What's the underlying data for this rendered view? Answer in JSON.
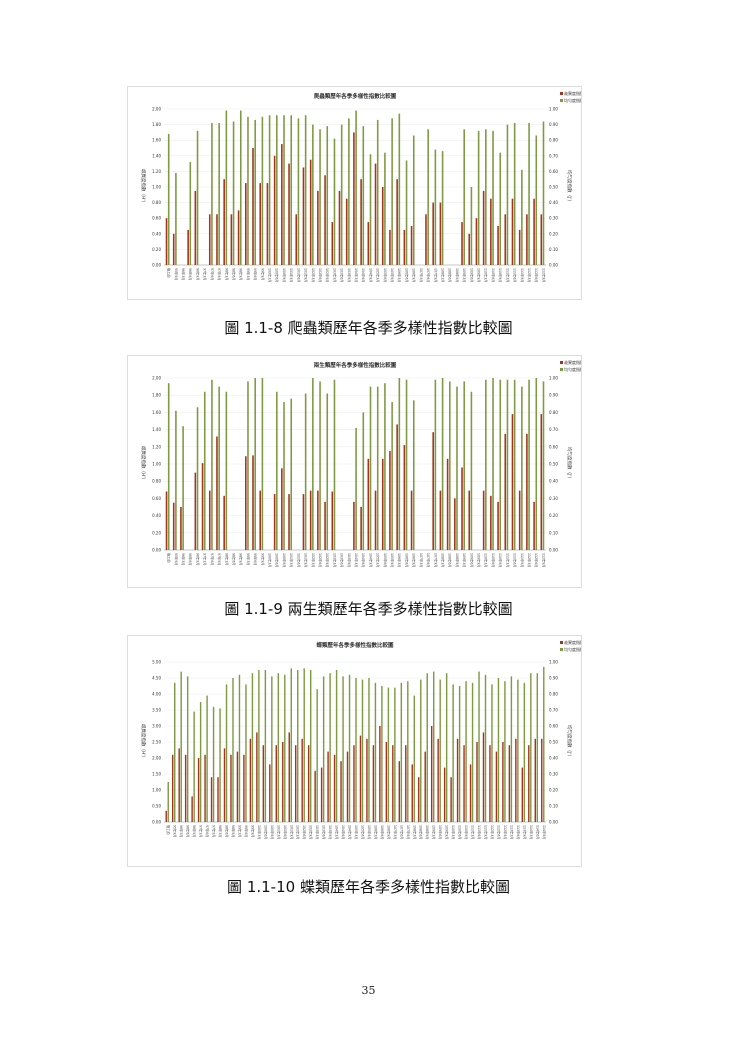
{
  "colors": {
    "richness": "#a4351f",
    "evenness": "#7e9a42",
    "grid": "#e9e9e9",
    "axis": "#999999"
  },
  "page_number": "35",
  "figures": [
    {
      "caption": "圖 1.1-8 爬蟲類歷年各季多樣性指數比較圖",
      "chart_data": {
        "type": "bar",
        "title": "爬蟲類歷年各季多樣性指數比較圖",
        "legend": [
          "歧異度指數",
          "均勻度指數"
        ],
        "legend_position": "top-right",
        "ylabel_left": "歧異度指數（H'）",
        "ylabel_right": "均勻度指數（J'）",
        "ylim_left": [
          0,
          2
        ],
        "ylim_right": [
          0,
          1
        ],
        "yticks_left": [
          "0.00",
          "0.20",
          "0.40",
          "0.60",
          "0.80",
          "1.00",
          "1.20",
          "1.40",
          "1.60",
          "1.80",
          "2.00"
        ],
        "yticks_right": [
          "0.00",
          "0.10",
          "0.20",
          "0.30",
          "0.40",
          "0.50",
          "0.60",
          "0.70",
          "0.80",
          "0.90",
          "1.00"
        ],
        "xticks": [
          "施工前",
          "95年9月",
          "96年3月",
          "96年6月",
          "96年9月",
          "97年3月",
          "97年6月",
          "97年9月",
          "98年3月",
          "98年6月",
          "98年9月",
          "99年3月",
          "99年6月",
          "99年9月",
          "100年3月",
          "100年6月",
          "100年9月",
          "101年3月",
          "101年6月",
          "101年9月",
          "102年3月",
          "102年6月",
          "102年9月",
          "103年3月",
          "103年6月",
          "103年9月",
          "104年3月",
          "104年6月",
          "104年9月",
          "105年3月",
          "105年6月",
          "105年9月",
          "106年3月",
          "106年6月",
          "106年9月",
          "107年3月",
          "107年6月",
          "107年9月",
          "108年3月",
          "108年6月",
          "108年9月",
          "109年3月",
          "109年6月",
          "109年9月",
          "110年3月",
          "110年6月",
          "110年9月",
          "111年3月",
          "111年6月",
          "111年9月",
          "112年3月",
          "112年6月",
          "112年9月"
        ],
        "series": [
          {
            "name": "歧異度指數",
            "values": [
              0.6,
              0.4,
              0,
              0.45,
              0.95,
              0,
              0.65,
              0.65,
              1.1,
              0.65,
              0.7,
              1.05,
              1.5,
              1.05,
              1.05,
              1.4,
              1.55,
              1.3,
              0.65,
              1.25,
              1.35,
              0.95,
              1.15,
              0.55,
              0.95,
              0.85,
              1.7,
              1.1,
              0.55,
              1.3,
              1.0,
              0.45,
              1.1,
              0.45,
              0.5,
              0,
              0.65,
              0.8,
              0.8,
              0,
              0,
              0.55,
              0.4,
              0.6,
              0.95,
              0.85,
              0.5,
              0.65,
              0.85,
              0.45,
              0.65,
              0.85,
              0.65
            ]
          },
          {
            "name": "均勻度指數",
            "values": [
              0.84,
              0.59,
              0,
              0.66,
              0.86,
              0,
              0.91,
              0.91,
              0.99,
              0.92,
              0.99,
              0.95,
              0.93,
              0.95,
              0.96,
              0.96,
              0.96,
              0.96,
              0.94,
              0.96,
              0.9,
              0.87,
              0.89,
              0.81,
              0.9,
              0.94,
              0.99,
              0.89,
              0.71,
              0.93,
              0.72,
              0.94,
              0.97,
              0.67,
              0.83,
              0,
              0.87,
              0.74,
              0.73,
              0,
              0,
              0.87,
              0.5,
              0.86,
              0.87,
              0.86,
              0.72,
              0.9,
              0.91,
              0.61,
              0.91,
              0.83,
              0.92
            ]
          }
        ]
      }
    },
    {
      "caption": "圖 1.1-9 兩生類歷年各季多樣性指數比較圖",
      "chart_data": {
        "type": "bar",
        "title": "兩生類歷年各季多樣性指數比較圖",
        "legend": [
          "歧異度指數",
          "均勻度指數"
        ],
        "legend_position": "top-right",
        "ylabel_left": "歧異度指數（H'）",
        "ylabel_right": "均勻度指數（J'）",
        "ylim_left": [
          0,
          2
        ],
        "ylim_right": [
          0,
          1
        ],
        "yticks_left": [
          "0.00",
          "0.20",
          "0.40",
          "0.60",
          "0.80",
          "1.00",
          "1.20",
          "1.40",
          "1.60",
          "1.80",
          "2.00"
        ],
        "yticks_right": [
          "0.00",
          "0.10",
          "0.20",
          "0.30",
          "0.40",
          "0.50",
          "0.60",
          "0.70",
          "0.80",
          "0.90",
          "1.00"
        ],
        "xticks": [
          "施工前",
          "95年9月",
          "96年3月",
          "96年6月",
          "96年9月",
          "97年3月",
          "97年6月",
          "97年9月",
          "98年3月",
          "98年6月",
          "98年9月",
          "99年3月",
          "99年6月",
          "99年9月",
          "100年3月",
          "100年6月",
          "100年9月",
          "101年3月",
          "101年6月",
          "101年9月",
          "102年3月",
          "102年6月",
          "102年9月",
          "103年3月",
          "103年6月",
          "103年9月",
          "104年3月",
          "104年6月",
          "104年9月",
          "105年3月",
          "105年6月",
          "105年9月",
          "106年3月",
          "106年6月",
          "106年9月",
          "107年3月",
          "107年6月",
          "107年9月",
          "108年3月",
          "108年6月",
          "108年9月",
          "109年3月",
          "109年6月",
          "109年9月",
          "110年3月",
          "110年6月",
          "110年9月",
          "111年3月",
          "111年6月",
          "111年9月",
          "112年3月",
          "112年6月",
          "112年9月"
        ],
        "series": [
          {
            "name": "歧異度指數",
            "values": [
              0.68,
              0.55,
              0.5,
              0,
              0.9,
              1.01,
              0.69,
              1.32,
              0.63,
              0,
              0,
              1.09,
              1.1,
              0.69,
              0,
              0.65,
              0.95,
              0.65,
              0,
              0.65,
              0.69,
              0.69,
              0.56,
              0.68,
              0,
              0,
              0.56,
              0.5,
              1.06,
              0.69,
              1.06,
              1.15,
              1.46,
              1.22,
              0.69,
              0,
              0,
              1.37,
              0.69,
              1.06,
              0.6,
              0.96,
              0.69,
              0,
              0.69,
              0.63,
              0.56,
              1.35,
              1.58,
              0.69,
              1.35,
              0.56,
              1.58
            ]
          },
          {
            "name": "均勻度指數",
            "values": [
              0.97,
              0.81,
              0.72,
              0,
              0.83,
              0.92,
              0.99,
              0.95,
              0.92,
              0,
              0,
              0.98,
              1.0,
              1.0,
              0,
              0.92,
              0.86,
              0.88,
              0,
              0.91,
              1.0,
              0.98,
              0.91,
              0.99,
              0,
              0,
              0.71,
              0.8,
              0.95,
              0.95,
              0.97,
              0.86,
              1.0,
              0.99,
              0.87,
              0,
              0,
              0.99,
              1.0,
              0.98,
              0.95,
              0.98,
              0.92,
              0,
              0.99,
              1.0,
              0.99,
              0.99,
              0.99,
              0.95,
              0.99,
              1.0,
              0.98
            ]
          }
        ]
      }
    },
    {
      "caption": "圖 1.1-10 蝶類歷年各季多樣性指數比較圖",
      "chart_data": {
        "type": "bar",
        "title": "蝶類歷年各季多樣性指數比較圖",
        "legend": [
          "歧異度指數",
          "均勻度指數"
        ],
        "legend_position": "top-right",
        "ylabel_left": "歧異度指數（H'）",
        "ylabel_right": "均勻度指數（J'）",
        "ylim_left": [
          0,
          5
        ],
        "ylim_right": [
          0,
          1
        ],
        "yticks_left": [
          "0.00",
          "0.50",
          "1.00",
          "1.50",
          "2.00",
          "2.50",
          "3.00",
          "3.50",
          "4.00",
          "4.50",
          "5.00"
        ],
        "yticks_right": [
          "0.00",
          "0.10",
          "0.20",
          "0.30",
          "0.40",
          "0.50",
          "0.60",
          "0.70",
          "0.80",
          "0.90",
          "1.00"
        ],
        "xticks": [
          "施工前",
          "95年9月",
          "96年3月",
          "96年6月",
          "96年9月",
          "97年3月",
          "97年6月",
          "97年9月",
          "98年3月",
          "98年6月",
          "98年9月",
          "99年3月",
          "99年6月",
          "99年9月",
          "100年3月",
          "100年6月",
          "100年9月",
          "101年3月",
          "101年6月",
          "101年9月",
          "102年3月",
          "102年6月",
          "102年9月",
          "103年3月",
          "103年6月",
          "103年9月",
          "104年3月",
          "104年6月",
          "104年9月",
          "105年3月",
          "105年6月",
          "105年9月",
          "106年3月",
          "106年6月",
          "106年9月",
          "107年3月",
          "107年6月",
          "107年9月",
          "108年3月",
          "108年6月",
          "108年9月",
          "109年3月",
          "109年6月",
          "109年9月",
          "110年3月",
          "110年6月",
          "110年9月",
          "111年3月",
          "111年6月",
          "111年9月",
          "112年3月",
          "112年6月",
          "112年9月",
          "113年3月",
          "113年6月",
          "113年9月",
          "114年3月",
          "114年6月",
          "114年9月"
        ],
        "series": [
          {
            "name": "歧異度指數",
            "values": [
              0.35,
              2.1,
              2.3,
              2.1,
              0.8,
              2.0,
              2.1,
              1.4,
              1.4,
              2.3,
              2.1,
              2.2,
              2.1,
              2.6,
              2.8,
              2.4,
              1.8,
              2.4,
              2.5,
              2.8,
              2.4,
              2.6,
              2.4,
              1.6,
              1.7,
              2.2,
              2.1,
              1.9,
              2.2,
              2.4,
              2.7,
              2.6,
              2.4,
              3.0,
              2.5,
              2.4,
              1.9,
              2.4,
              1.8,
              1.4,
              2.2,
              3.0,
              2.6,
              1.7,
              1.4,
              2.6,
              2.4,
              1.8,
              2.5,
              2.8,
              2.4,
              2.2,
              2.5,
              2.4,
              2.6,
              1.7,
              2.4,
              2.6,
              2.6
            ]
          },
          {
            "name": "均勻度指數",
            "values": [
              0.25,
              0.87,
              0.94,
              0.91,
              0.69,
              0.75,
              0.79,
              0.72,
              0.71,
              0.86,
              0.9,
              0.92,
              0.86,
              0.93,
              0.95,
              0.95,
              0.91,
              0.93,
              0.92,
              0.96,
              0.95,
              0.96,
              0.95,
              0.83,
              0.91,
              0.93,
              0.95,
              0.91,
              0.92,
              0.9,
              0.89,
              0.9,
              0.87,
              0.85,
              0.84,
              0.84,
              0.87,
              0.88,
              0.79,
              0.89,
              0.93,
              0.94,
              0.89,
              0.93,
              0.86,
              0.85,
              0.88,
              0.87,
              0.94,
              0.92,
              0.86,
              0.9,
              0.88,
              0.91,
              0.89,
              0.87,
              0.93,
              0.93,
              0.97
            ]
          }
        ]
      }
    }
  ]
}
